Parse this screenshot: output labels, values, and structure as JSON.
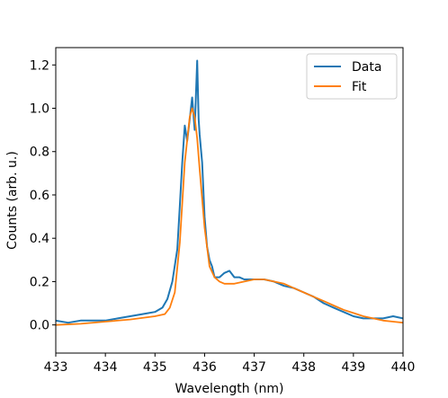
{
  "chart_data": {
    "type": "line",
    "title": "",
    "xlabel": "Wavelength (nm)",
    "ylabel": "Counts (arb. u.)",
    "xlim": [
      433,
      440
    ],
    "ylim": [
      -0.13,
      1.28
    ],
    "x_ticks": [
      433,
      434,
      435,
      436,
      437,
      438,
      439,
      440
    ],
    "x_tick_labels": [
      "433",
      "434",
      "435",
      "436",
      "437",
      "438",
      "439",
      "440"
    ],
    "y_ticks": [
      0.0,
      0.2,
      0.4,
      0.6,
      0.8,
      1.0,
      1.2
    ],
    "y_tick_labels": [
      "0.0",
      "0.2",
      "0.4",
      "0.6",
      "0.8",
      "1.0",
      "1.2"
    ],
    "grid": false,
    "legend_position": "upper-right",
    "series": [
      {
        "name": "Data",
        "color": "#1f77b4",
        "x": [
          433.0,
          433.25,
          433.5,
          433.75,
          434.0,
          434.25,
          434.5,
          434.75,
          435.0,
          435.15,
          435.25,
          435.35,
          435.45,
          435.5,
          435.55,
          435.6,
          435.65,
          435.7,
          435.75,
          435.8,
          435.85,
          435.88,
          435.9,
          435.95,
          436.0,
          436.05,
          436.1,
          436.15,
          436.2,
          436.3,
          436.4,
          436.5,
          436.6,
          436.7,
          436.8,
          437.0,
          437.2,
          437.4,
          437.6,
          437.8,
          438.0,
          438.2,
          438.4,
          438.6,
          438.8,
          439.0,
          439.2,
          439.4,
          439.6,
          439.8,
          440.0
        ],
        "y": [
          0.02,
          0.01,
          0.02,
          0.02,
          0.02,
          0.03,
          0.04,
          0.05,
          0.06,
          0.08,
          0.12,
          0.2,
          0.35,
          0.55,
          0.75,
          0.92,
          0.85,
          0.95,
          1.05,
          0.9,
          1.22,
          0.95,
          0.88,
          0.75,
          0.5,
          0.36,
          0.3,
          0.27,
          0.22,
          0.22,
          0.24,
          0.25,
          0.22,
          0.22,
          0.21,
          0.21,
          0.21,
          0.2,
          0.18,
          0.17,
          0.15,
          0.13,
          0.1,
          0.08,
          0.06,
          0.04,
          0.03,
          0.03,
          0.03,
          0.04,
          0.03
        ]
      },
      {
        "name": "Fit",
        "color": "#ff7f0e",
        "x": [
          433.0,
          433.5,
          434.0,
          434.5,
          435.0,
          435.2,
          435.3,
          435.4,
          435.5,
          435.6,
          435.7,
          435.75,
          435.8,
          435.85,
          435.9,
          436.0,
          436.1,
          436.2,
          436.3,
          436.4,
          436.6,
          436.8,
          437.0,
          437.2,
          437.4,
          437.6,
          437.8,
          438.0,
          438.2,
          438.4,
          438.6,
          438.8,
          439.0,
          439.2,
          439.4,
          439.6,
          439.8,
          440.0
        ],
        "y": [
          0.0,
          0.005,
          0.015,
          0.025,
          0.04,
          0.05,
          0.08,
          0.15,
          0.38,
          0.75,
          0.96,
          1.0,
          0.96,
          0.86,
          0.72,
          0.45,
          0.27,
          0.22,
          0.2,
          0.19,
          0.19,
          0.2,
          0.21,
          0.21,
          0.2,
          0.19,
          0.17,
          0.15,
          0.13,
          0.11,
          0.09,
          0.07,
          0.055,
          0.04,
          0.03,
          0.02,
          0.015,
          0.01
        ]
      }
    ]
  }
}
